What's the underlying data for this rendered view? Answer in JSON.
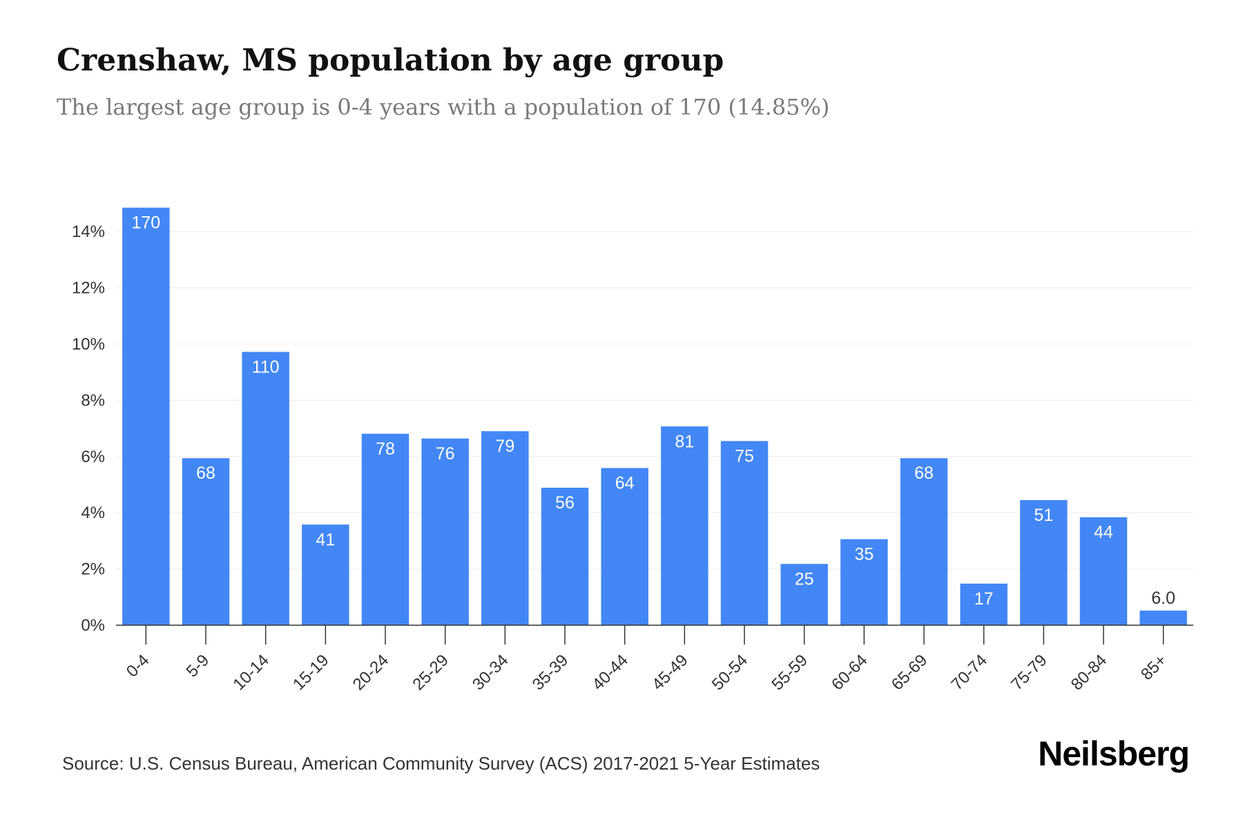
{
  "header": {
    "title": "Crenshaw, MS population by age group",
    "subtitle": "The largest age group is 0-4 years with a population of 170 (14.85%)"
  },
  "footer": {
    "source": "Source: U.S. Census Bureau, American Community Survey (ACS) 2017-2021 5-Year Estimates",
    "brand": "Neilsberg"
  },
  "colors": {
    "bar": "#4287f5",
    "grid": "#ececec",
    "axis": "#333333",
    "label_inside": "#ffffff",
    "label_outside": "#333333"
  },
  "chart_data": {
    "type": "bar",
    "title": "Crenshaw, MS population by age group",
    "subtitle": "The largest age group is 0-4 years with a population of 170 (14.85%)",
    "categories": [
      "0-4",
      "5-9",
      "10-14",
      "15-19",
      "20-24",
      "25-29",
      "30-34",
      "35-39",
      "40-44",
      "45-49",
      "50-54",
      "55-59",
      "60-64",
      "65-69",
      "70-74",
      "75-79",
      "80-84",
      "85+"
    ],
    "percent_values": [
      14.85,
      5.94,
      9.72,
      3.58,
      6.81,
      6.64,
      6.9,
      4.89,
      5.59,
      7.07,
      6.55,
      2.18,
      3.06,
      5.94,
      1.48,
      4.45,
      3.84,
      0.52
    ],
    "data_labels": [
      "170",
      "68",
      "110",
      "41",
      "78",
      "76",
      "79",
      "56",
      "64",
      "81",
      "75",
      "25",
      "35",
      "68",
      "17",
      "51",
      "44",
      "6.0"
    ],
    "y_ticks": [
      "0%",
      "2%",
      "4%",
      "6%",
      "8%",
      "10%",
      "12%",
      "14%"
    ],
    "y_tick_values": [
      0,
      2,
      4,
      6,
      8,
      10,
      12,
      14
    ],
    "ylim": [
      0,
      15
    ],
    "xlabel": "",
    "ylabel": "",
    "grid": true,
    "legend": "none"
  }
}
